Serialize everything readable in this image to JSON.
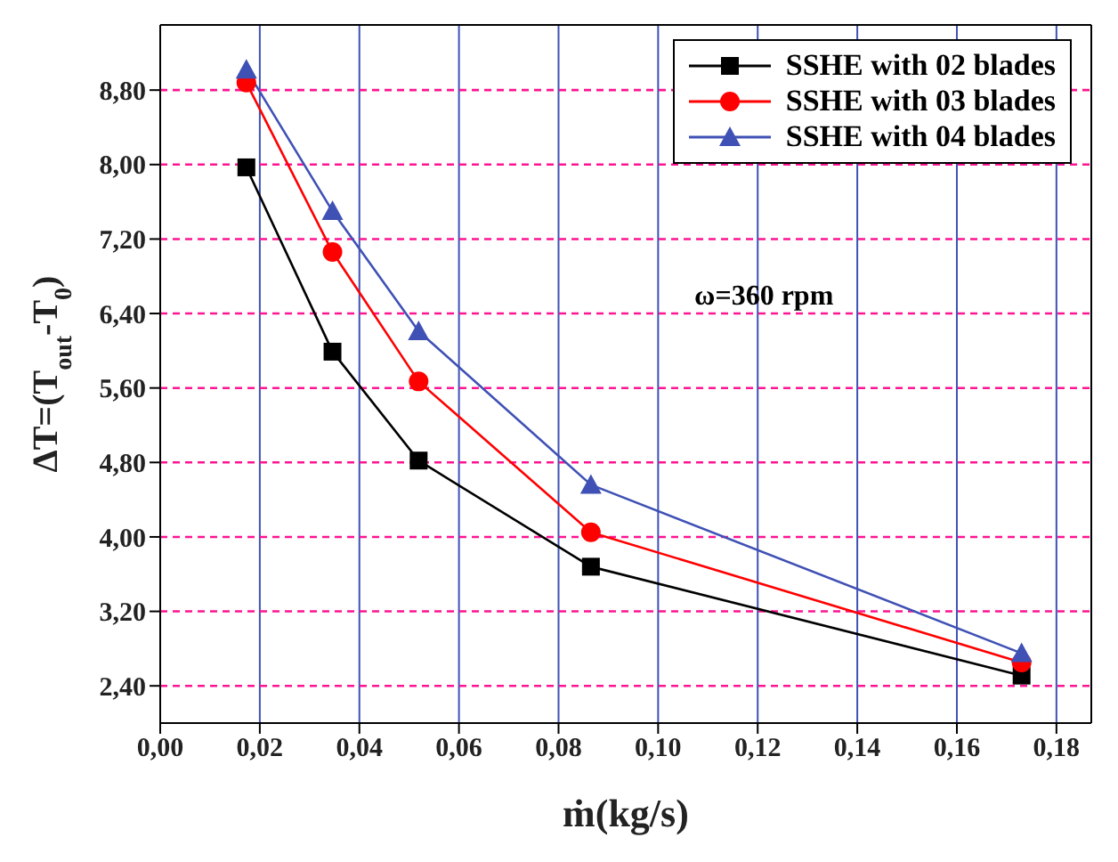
{
  "chart_data": {
    "type": "line",
    "xlabel": "ṁ(kg/s)",
    "ylabel": "ΔT=(T$_{out}$-T$_{0}$)",
    "annotations": [
      "ω=360 rpm"
    ],
    "x": [
      0.0173,
      0.0346,
      0.0519,
      0.0865,
      0.173
    ],
    "series": [
      {
        "name": "SSHE with 02 blades",
        "color": "#000000",
        "marker": "square",
        "values": [
          7.97,
          5.99,
          4.82,
          3.68,
          2.51
        ]
      },
      {
        "name": "SSHE with 03 blades",
        "color": "#ff0000",
        "marker": "circle",
        "values": [
          8.88,
          7.06,
          5.67,
          4.05,
          2.65
        ]
      },
      {
        "name": "SSHE with 04 blades",
        "color": "#3f51b5",
        "marker": "triangle",
        "values": [
          9.02,
          7.5,
          6.21,
          4.56,
          2.75
        ]
      }
    ],
    "xlim": [
      0,
      0.187
    ],
    "ylim": [
      2.0,
      9.5
    ],
    "xticks": [
      {
        "value": 0,
        "label": "0,00"
      },
      {
        "value": 0.02,
        "label": "0,02"
      },
      {
        "value": 0.04,
        "label": "0,04"
      },
      {
        "value": 0.06,
        "label": "0,06"
      },
      {
        "value": 0.08,
        "label": "0,08"
      },
      {
        "value": 0.1,
        "label": "0,10"
      },
      {
        "value": 0.12,
        "label": "0,12"
      },
      {
        "value": 0.14,
        "label": "0,14"
      },
      {
        "value": 0.16,
        "label": "0,16"
      },
      {
        "value": 0.18,
        "label": "0,18"
      }
    ],
    "yticks": [
      {
        "value": 2.4,
        "label": "2,40"
      },
      {
        "value": 3.2,
        "label": "3,20"
      },
      {
        "value": 4.0,
        "label": "4,00"
      },
      {
        "value": 4.8,
        "label": "4,80"
      },
      {
        "value": 5.6,
        "label": "5,60"
      },
      {
        "value": 6.4,
        "label": "6,40"
      },
      {
        "value": 7.2,
        "label": "7,20"
      },
      {
        "value": 8.0,
        "label": "8,00"
      },
      {
        "value": 8.8,
        "label": "8,80"
      }
    ],
    "grid": true,
    "legend": "top right",
    "line_style": "solid"
  }
}
